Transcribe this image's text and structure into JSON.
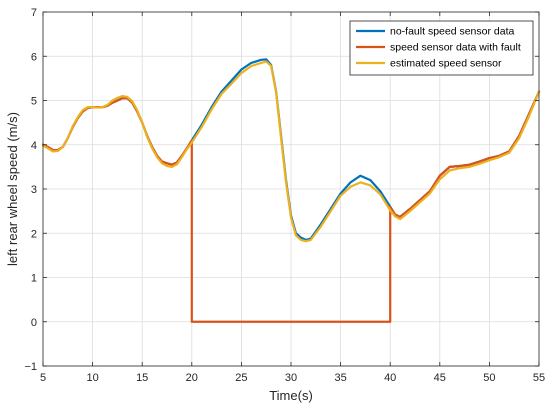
{
  "chart_data": {
    "type": "line",
    "xlabel": "Time(s)",
    "ylabel": "left rear wheel speed (m/s)",
    "xlim": [
      5,
      55
    ],
    "ylim": [
      -1,
      7
    ],
    "xticks": [
      5,
      10,
      15,
      20,
      25,
      30,
      35,
      40,
      45,
      50,
      55
    ],
    "yticks": [
      -1,
      0,
      1,
      2,
      3,
      4,
      5,
      6,
      7
    ],
    "grid": true,
    "legend_position": "top-right",
    "series": [
      {
        "name": "no-fault speed sensor data",
        "color": "#0072BD",
        "x": [
          5,
          5.5,
          6,
          6.5,
          7,
          7.5,
          8,
          8.5,
          9,
          9.5,
          10,
          10.5,
          11,
          11.5,
          12,
          12.5,
          13,
          13.5,
          14,
          14.5,
          15,
          15.5,
          16,
          16.5,
          17,
          17.5,
          18,
          18.5,
          19,
          19.5,
          20,
          21,
          22,
          23,
          24,
          25,
          26,
          27,
          27.5,
          28,
          28.5,
          29,
          29.5,
          30,
          30.5,
          31,
          31.5,
          32,
          33,
          34,
          35,
          36,
          37,
          38,
          39,
          40,
          40.5,
          41,
          42,
          43,
          44,
          45,
          46,
          47,
          48,
          49,
          50,
          51,
          52,
          53,
          54,
          55
        ],
        "y": [
          4.0,
          3.95,
          3.88,
          3.88,
          3.95,
          4.15,
          4.4,
          4.6,
          4.75,
          4.83,
          4.85,
          4.85,
          4.85,
          4.88,
          4.95,
          5.0,
          5.05,
          5.05,
          4.95,
          4.75,
          4.5,
          4.2,
          3.95,
          3.75,
          3.62,
          3.58,
          3.55,
          3.6,
          3.75,
          3.92,
          4.1,
          4.45,
          4.85,
          5.2,
          5.45,
          5.7,
          5.85,
          5.92,
          5.93,
          5.8,
          5.2,
          4.2,
          3.2,
          2.4,
          2.0,
          1.9,
          1.85,
          1.88,
          2.2,
          2.55,
          2.9,
          3.15,
          3.3,
          3.2,
          2.95,
          2.6,
          2.42,
          2.37,
          2.55,
          2.75,
          2.95,
          3.3,
          3.5,
          3.52,
          3.55,
          3.62,
          3.7,
          3.75,
          3.85,
          4.2,
          4.7,
          5.2
        ]
      },
      {
        "name": "speed sensor data with fault",
        "color": "#D95319",
        "x": [
          5,
          5.5,
          6,
          6.5,
          7,
          7.5,
          8,
          8.5,
          9,
          9.5,
          10,
          10.5,
          11,
          11.5,
          12,
          12.5,
          13,
          13.5,
          14,
          14.5,
          15,
          15.5,
          16,
          16.5,
          17,
          17.5,
          18,
          18.5,
          19,
          19.5,
          20,
          20,
          40,
          40,
          40.5,
          41,
          42,
          43,
          44,
          45,
          46,
          47,
          48,
          49,
          50,
          51,
          52,
          53,
          54,
          55
        ],
        "y": [
          4.0,
          3.95,
          3.88,
          3.88,
          3.95,
          4.15,
          4.4,
          4.6,
          4.75,
          4.83,
          4.85,
          4.85,
          4.85,
          4.88,
          4.95,
          5.0,
          5.05,
          5.05,
          4.95,
          4.75,
          4.5,
          4.2,
          3.95,
          3.75,
          3.62,
          3.58,
          3.55,
          3.6,
          3.75,
          3.92,
          4.1,
          0,
          0,
          2.6,
          2.42,
          2.37,
          2.55,
          2.75,
          2.95,
          3.3,
          3.5,
          3.52,
          3.55,
          3.62,
          3.7,
          3.75,
          3.85,
          4.2,
          4.7,
          5.2
        ]
      },
      {
        "name": "estimated speed sensor",
        "color": "#EDB120",
        "x": [
          5,
          5.5,
          6,
          6.5,
          7,
          7.5,
          8,
          8.5,
          9,
          9.5,
          10,
          10.5,
          11,
          11.5,
          12,
          12.5,
          13,
          13.5,
          14,
          14.5,
          15,
          15.5,
          16,
          16.5,
          17,
          17.5,
          18,
          18.5,
          19,
          19.5,
          20,
          21,
          22,
          23,
          24,
          25,
          26,
          27,
          27.5,
          28,
          28.5,
          29,
          29.5,
          30,
          30.5,
          31,
          31.5,
          32,
          33,
          34,
          35,
          36,
          37,
          38,
          39,
          40,
          40.5,
          41,
          42,
          43,
          44,
          45,
          46,
          47,
          48,
          49,
          50,
          51,
          52,
          53,
          54,
          55
        ],
        "y": [
          3.98,
          3.92,
          3.85,
          3.86,
          3.95,
          4.15,
          4.42,
          4.62,
          4.78,
          4.85,
          4.85,
          4.84,
          4.85,
          4.9,
          5.0,
          5.06,
          5.1,
          5.08,
          4.98,
          4.78,
          4.5,
          4.18,
          3.92,
          3.72,
          3.58,
          3.52,
          3.5,
          3.56,
          3.72,
          3.9,
          4.05,
          4.4,
          4.8,
          5.15,
          5.38,
          5.62,
          5.78,
          5.85,
          5.88,
          5.78,
          5.18,
          4.15,
          3.15,
          2.35,
          1.95,
          1.85,
          1.82,
          1.85,
          2.15,
          2.5,
          2.85,
          3.05,
          3.15,
          3.08,
          2.88,
          2.52,
          2.38,
          2.32,
          2.5,
          2.7,
          2.9,
          3.22,
          3.42,
          3.47,
          3.5,
          3.57,
          3.65,
          3.72,
          3.82,
          4.15,
          4.65,
          5.2
        ]
      }
    ]
  }
}
